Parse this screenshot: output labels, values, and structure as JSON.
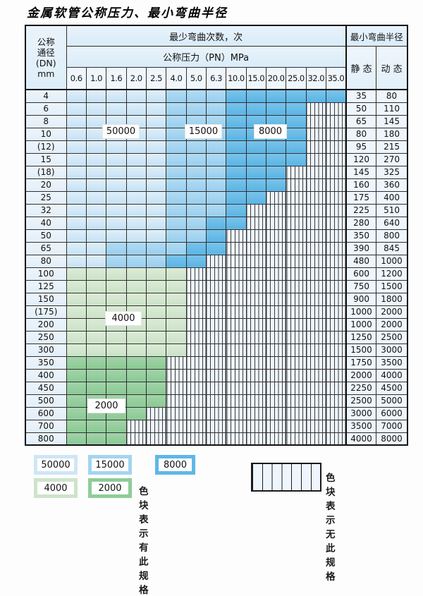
{
  "title": "金属软管公称压力、最小弯曲半径",
  "table": {
    "header": {
      "dn_lines": [
        "公称",
        "通径",
        "(DN)",
        "mm"
      ],
      "bend_cycles_label": "最少弯曲次数，次",
      "pressure_label": "公称压力（PN）MPa",
      "min_radius_label": "最小弯曲半径",
      "static_label": "静 态",
      "dynamic_label": "动 态",
      "pressure_columns": [
        "0.6",
        "1.0",
        "1.6",
        "2.0",
        "2.5",
        "4.0",
        "5.0",
        "6.3",
        "10.0",
        "15.0",
        "20.0",
        "25.0",
        "32.0",
        "35.0"
      ]
    },
    "cell_code_meaning": {
      "b1": "50000次",
      "b2": "15000次",
      "b3": "8000次",
      "g1": "4000次",
      "g2": "2000次",
      "x": "无此规格"
    },
    "rows": [
      {
        "dn": "4",
        "cells": [
          "b1",
          "b1",
          "b1",
          "b1",
          "b1",
          "b2",
          "b2",
          "b2",
          "b3",
          "b3",
          "b3",
          "b3",
          "b3",
          "b3"
        ],
        "static": "35",
        "dynamic": "80"
      },
      {
        "dn": "6",
        "cells": [
          "b1",
          "b1",
          "b1",
          "b1",
          "b1",
          "b2",
          "b2",
          "b2",
          "b3",
          "b3",
          "b3",
          "b3",
          "x",
          "x"
        ],
        "static": "50",
        "dynamic": "110"
      },
      {
        "dn": "8",
        "cells": [
          "b1",
          "b1",
          "b1",
          "b1",
          "b1",
          "b2",
          "b2",
          "b2",
          "b3",
          "b3",
          "b3",
          "b3",
          "x",
          "x"
        ],
        "static": "65",
        "dynamic": "145"
      },
      {
        "dn": "10",
        "cells": [
          "b1",
          "b1",
          "b1",
          "b1",
          "b1",
          "b2",
          "b2",
          "b2",
          "b3",
          "b3",
          "b3",
          "b3",
          "x",
          "x"
        ],
        "static": "80",
        "dynamic": "180"
      },
      {
        "dn": "(12)",
        "cells": [
          "b1",
          "b1",
          "b1",
          "b1",
          "b1",
          "b2",
          "b2",
          "b2",
          "b3",
          "b3",
          "b3",
          "b3",
          "x",
          "x"
        ],
        "static": "95",
        "dynamic": "215"
      },
      {
        "dn": "15",
        "cells": [
          "b1",
          "b1",
          "b1",
          "b1",
          "b1",
          "b2",
          "b2",
          "b2",
          "b3",
          "b3",
          "b3",
          "b3",
          "x",
          "x"
        ],
        "static": "120",
        "dynamic": "270"
      },
      {
        "dn": "(18)",
        "cells": [
          "b1",
          "b1",
          "b1",
          "b1",
          "b1",
          "b2",
          "b2",
          "b2",
          "b3",
          "b3",
          "b3",
          "x",
          "x",
          "x"
        ],
        "static": "145",
        "dynamic": "325"
      },
      {
        "dn": "20",
        "cells": [
          "b1",
          "b1",
          "b1",
          "b1",
          "b1",
          "b2",
          "b2",
          "b2",
          "b3",
          "b3",
          "b3",
          "x",
          "x",
          "x"
        ],
        "static": "160",
        "dynamic": "360"
      },
      {
        "dn": "25",
        "cells": [
          "b1",
          "b1",
          "b1",
          "b1",
          "b1",
          "b2",
          "b2",
          "b2",
          "b3",
          "b3",
          "x",
          "x",
          "x",
          "x"
        ],
        "static": "175",
        "dynamic": "400"
      },
      {
        "dn": "32",
        "cells": [
          "b1",
          "b1",
          "b1",
          "b1",
          "b1",
          "b2",
          "b2",
          "b2",
          "b3",
          "x",
          "x",
          "x",
          "x",
          "x"
        ],
        "static": "225",
        "dynamic": "510"
      },
      {
        "dn": "40",
        "cells": [
          "b1",
          "b1",
          "b1",
          "b1",
          "b1",
          "b2",
          "b2",
          "b3",
          "b3",
          "x",
          "x",
          "x",
          "x",
          "x"
        ],
        "static": "280",
        "dynamic": "640"
      },
      {
        "dn": "50",
        "cells": [
          "b1",
          "b1",
          "b1",
          "b1",
          "b1",
          "b2",
          "b2",
          "b3",
          "x",
          "x",
          "x",
          "x",
          "x",
          "x"
        ],
        "static": "350",
        "dynamic": "800"
      },
      {
        "dn": "65",
        "cells": [
          "b1",
          "b1",
          "b2",
          "b2",
          "b2",
          "b2",
          "b3",
          "b3",
          "x",
          "x",
          "x",
          "x",
          "x",
          "x"
        ],
        "static": "390",
        "dynamic": "845"
      },
      {
        "dn": "80",
        "cells": [
          "b1",
          "b1",
          "b2",
          "b2",
          "b2",
          "b3",
          "b3",
          "x",
          "x",
          "x",
          "x",
          "x",
          "x",
          "x"
        ],
        "static": "480",
        "dynamic": "1000"
      },
      {
        "dn": "100",
        "cells": [
          "g1",
          "g1",
          "g1",
          "g1",
          "g1",
          "g1",
          "x",
          "x",
          "x",
          "x",
          "x",
          "x",
          "x",
          "x"
        ],
        "static": "600",
        "dynamic": "1200"
      },
      {
        "dn": "125",
        "cells": [
          "g1",
          "g1",
          "g1",
          "g1",
          "g1",
          "g1",
          "x",
          "x",
          "x",
          "x",
          "x",
          "x",
          "x",
          "x"
        ],
        "static": "750",
        "dynamic": "1500"
      },
      {
        "dn": "150",
        "cells": [
          "g1",
          "g1",
          "g1",
          "g1",
          "g1",
          "g1",
          "x",
          "x",
          "x",
          "x",
          "x",
          "x",
          "x",
          "x"
        ],
        "static": "900",
        "dynamic": "1800"
      },
      {
        "dn": "(175)",
        "cells": [
          "g1",
          "g1",
          "g1",
          "g1",
          "g1",
          "g1",
          "x",
          "x",
          "x",
          "x",
          "x",
          "x",
          "x",
          "x"
        ],
        "static": "1000",
        "dynamic": "2000"
      },
      {
        "dn": "200",
        "cells": [
          "g1",
          "g1",
          "g1",
          "g1",
          "g1",
          "g1",
          "x",
          "x",
          "x",
          "x",
          "x",
          "x",
          "x",
          "x"
        ],
        "static": "1000",
        "dynamic": "2000"
      },
      {
        "dn": "250",
        "cells": [
          "g1",
          "g1",
          "g1",
          "g1",
          "g1",
          "g1",
          "x",
          "x",
          "x",
          "x",
          "x",
          "x",
          "x",
          "x"
        ],
        "static": "1250",
        "dynamic": "2500"
      },
      {
        "dn": "300",
        "cells": [
          "g1",
          "g1",
          "g1",
          "g1",
          "g1",
          "g1",
          "x",
          "x",
          "x",
          "x",
          "x",
          "x",
          "x",
          "x"
        ],
        "static": "1500",
        "dynamic": "3000"
      },
      {
        "dn": "350",
        "cells": [
          "g2",
          "g2",
          "g2",
          "g2",
          "g2",
          "x",
          "x",
          "x",
          "x",
          "x",
          "x",
          "x",
          "x",
          "x"
        ],
        "static": "1750",
        "dynamic": "3500"
      },
      {
        "dn": "400",
        "cells": [
          "g2",
          "g2",
          "g2",
          "g2",
          "g2",
          "x",
          "x",
          "x",
          "x",
          "x",
          "x",
          "x",
          "x",
          "x"
        ],
        "static": "2000",
        "dynamic": "4000"
      },
      {
        "dn": "450",
        "cells": [
          "g2",
          "g2",
          "g2",
          "g2",
          "g2",
          "x",
          "x",
          "x",
          "x",
          "x",
          "x",
          "x",
          "x",
          "x"
        ],
        "static": "2250",
        "dynamic": "4500"
      },
      {
        "dn": "500",
        "cells": [
          "g2",
          "g2",
          "g2",
          "g2",
          "g2",
          "x",
          "x",
          "x",
          "x",
          "x",
          "x",
          "x",
          "x",
          "x"
        ],
        "static": "2500",
        "dynamic": "5000"
      },
      {
        "dn": "600",
        "cells": [
          "g2",
          "g2",
          "g2",
          "g2",
          "x",
          "x",
          "x",
          "x",
          "x",
          "x",
          "x",
          "x",
          "x",
          "x"
        ],
        "static": "3000",
        "dynamic": "6000"
      },
      {
        "dn": "700",
        "cells": [
          "g2",
          "g2",
          "g2",
          "x",
          "x",
          "x",
          "x",
          "x",
          "x",
          "x",
          "x",
          "x",
          "x",
          "x"
        ],
        "static": "3500",
        "dynamic": "7000"
      },
      {
        "dn": "800",
        "cells": [
          "g2",
          "g2",
          "g2",
          "x",
          "x",
          "x",
          "x",
          "x",
          "x",
          "x",
          "x",
          "x",
          "x",
          "x"
        ],
        "static": "4000",
        "dynamic": "8000"
      }
    ]
  },
  "overlays": [
    "50000",
    "15000",
    "8000",
    "4000",
    "2000"
  ],
  "legend": {
    "items": [
      {
        "label": "50000",
        "code": "b1"
      },
      {
        "label": "15000",
        "code": "b2"
      },
      {
        "label": "8000",
        "code": "b3"
      },
      {
        "label": "4000",
        "code": "g1"
      },
      {
        "label": "2000",
        "code": "g2"
      }
    ],
    "has_spec_note": "色块表示有此规格",
    "no_spec_note": "色块表示无此规格"
  },
  "colors": {
    "blue_50000": "#cfe6f6",
    "blue_15000": "#a3d4f0",
    "blue_8000": "#5fb8e7",
    "green_4000": "#cde4c9",
    "green_2000": "#8fcc99",
    "empty_bg": "#eef5fc",
    "grid_line": "#2e2e2e"
  }
}
